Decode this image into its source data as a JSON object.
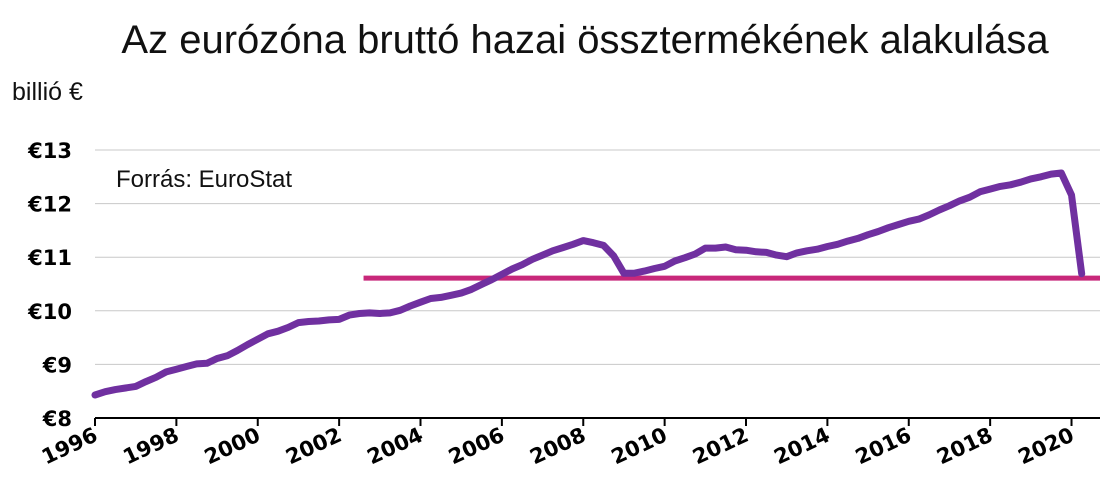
{
  "chart_data": {
    "type": "line",
    "title": "Az eurózóna bruttó hazai össztermékének alakulása",
    "ylabel": "billió €",
    "xlabel": "",
    "annotation": "Forrás: EuroStat",
    "ylim": [
      8,
      13
    ],
    "xlim": [
      1996,
      2020.7
    ],
    "y_ticks": [
      8,
      9,
      10,
      11,
      12,
      13
    ],
    "y_tick_labels": [
      "€8",
      "€9",
      "€10",
      "€11",
      "€12",
      "€13"
    ],
    "x_ticks": [
      1996,
      1998,
      2000,
      2002,
      2004,
      2006,
      2008,
      2010,
      2012,
      2014,
      2016,
      2018,
      2020
    ],
    "x_tick_labels": [
      "1996",
      "1998",
      "2000",
      "2002",
      "2004",
      "2006",
      "2008",
      "2010",
      "2012",
      "2014",
      "2016",
      "2018",
      "2020"
    ],
    "grid": "horizontal",
    "colors": {
      "series": "#7030a0",
      "reference": "#c8287a"
    },
    "series": [
      {
        "x": [
          1996.0,
          1996.25,
          1996.5,
          1996.75,
          1997.0,
          1997.25,
          1997.5,
          1997.75,
          1998.0,
          1998.25,
          1998.5,
          1998.75,
          1999.0,
          1999.25,
          1999.5,
          1999.75,
          2000.0,
          2000.25,
          2000.5,
          2000.75,
          2001.0,
          2001.25,
          2001.5,
          2001.75,
          2002.0,
          2002.25,
          2002.5,
          2002.75,
          2003.0,
          2003.25,
          2003.5,
          2003.75,
          2004.0,
          2004.25,
          2004.5,
          2004.75,
          2005.0,
          2005.25,
          2005.5,
          2005.75,
          2006.0,
          2006.25,
          2006.5,
          2006.75,
          2007.0,
          2007.25,
          2007.5,
          2007.75,
          2008.0,
          2008.25,
          2008.5,
          2008.75,
          2009.0,
          2009.25,
          2009.5,
          2009.75,
          2010.0,
          2010.25,
          2010.5,
          2010.75,
          2011.0,
          2011.25,
          2011.5,
          2011.75,
          2012.0,
          2012.25,
          2012.5,
          2012.75,
          2013.0,
          2013.25,
          2013.5,
          2013.75,
          2014.0,
          2014.25,
          2014.5,
          2014.75,
          2015.0,
          2015.25,
          2015.5,
          2015.75,
          2016.0,
          2016.25,
          2016.5,
          2016.75,
          2017.0,
          2017.25,
          2017.5,
          2017.75,
          2018.0,
          2018.25,
          2018.5,
          2018.75,
          2019.0,
          2019.25,
          2019.5,
          2019.75,
          2020.0,
          2020.25
        ],
        "y": [
          8.43,
          8.49,
          8.53,
          8.56,
          8.59,
          8.68,
          8.76,
          8.86,
          8.91,
          8.96,
          9.01,
          9.02,
          9.11,
          9.16,
          9.26,
          9.37,
          9.47,
          9.57,
          9.62,
          9.69,
          9.78,
          9.8,
          9.81,
          9.83,
          9.84,
          9.92,
          9.95,
          9.96,
          9.95,
          9.96,
          10.01,
          10.09,
          10.16,
          10.23,
          10.25,
          10.29,
          10.33,
          10.4,
          10.49,
          10.58,
          10.68,
          10.78,
          10.86,
          10.96,
          11.04,
          11.12,
          11.18,
          11.24,
          11.31,
          11.27,
          11.22,
          11.02,
          10.7,
          10.7,
          10.74,
          10.79,
          10.83,
          10.93,
          10.99,
          11.06,
          11.17,
          11.17,
          11.19,
          11.14,
          11.13,
          11.1,
          11.09,
          11.04,
          11.01,
          11.08,
          11.12,
          11.15,
          11.2,
          11.24,
          11.3,
          11.35,
          11.42,
          11.48,
          11.55,
          11.61,
          11.67,
          11.71,
          11.79,
          11.88,
          11.96,
          12.05,
          12.12,
          12.22,
          12.27,
          12.32,
          12.35,
          12.4,
          12.46,
          12.5,
          12.55,
          12.57,
          12.16,
          10.69
        ]
      }
    ],
    "reference_line": {
      "y": 10.61,
      "x_start": 2002.6,
      "x_end": 2020.7
    }
  }
}
